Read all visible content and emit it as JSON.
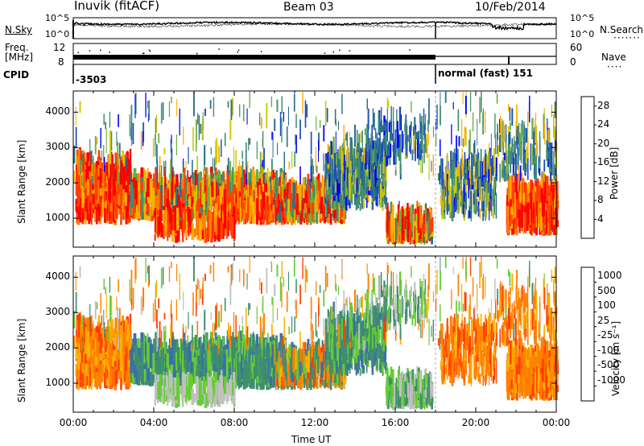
{
  "header": {
    "radar": "Inuvik (fitACF)",
    "beam": "Beam 03",
    "date": "10/Feb/2014"
  },
  "top_panels": {
    "nsky_label": "N.Sky",
    "nsky_ticks": [
      "10^5",
      "10^0"
    ],
    "nsearch_label": "N.Search",
    "nsearch_ticks": [
      "10^5",
      "10^0"
    ],
    "freq_label_1": "Freq.",
    "freq_label_2": "[MHz]",
    "freq_ticks": [
      "12",
      "8"
    ],
    "nave_label": "Nave",
    "nave_ticks": [
      "60",
      "0"
    ],
    "cpid_label": "CPID",
    "cpid_left": "-3503",
    "cpid_right": "normal (fast) 151"
  },
  "chart_data": [
    {
      "type": "heatmap",
      "title": "",
      "ylabel": "Slant Range [km]",
      "xlabel": "",
      "x_ticks": [
        "00:00",
        "04:00",
        "08:00",
        "12:00",
        "16:00",
        "20:00",
        "00:00"
      ],
      "y_ticks": [
        1000,
        2000,
        3000,
        4000
      ],
      "ylim": [
        180,
        4600
      ],
      "xlim_hours": [
        0,
        24
      ],
      "colorbar": {
        "label": "Power [dB]",
        "ticks": [
          4,
          8,
          12,
          16,
          20,
          24,
          28
        ],
        "range": [
          0,
          30
        ],
        "colors": [
          "#0000ff",
          "#1a4fb5",
          "#2b6f8f",
          "#3f8f6f",
          "#6fae3f",
          "#c8c800",
          "#ffb000",
          "#ff8000",
          "#ff4000",
          "#ff0000"
        ]
      }
    },
    {
      "type": "heatmap",
      "title": "",
      "ylabel": "Slant Range [km]",
      "xlabel": "Time UT",
      "x_ticks": [
        "00:00",
        "04:00",
        "08:00",
        "12:00",
        "16:00",
        "20:00",
        "00:00"
      ],
      "y_ticks": [
        1000,
        2000,
        3000,
        4000
      ],
      "ylim": [
        180,
        4600
      ],
      "xlim_hours": [
        0,
        24
      ],
      "colorbar": {
        "label": "Velocity [m s⁻¹]",
        "ticks": [
          "1000",
          "500",
          "100",
          "25",
          "-25",
          "-100",
          "-500",
          "-1000"
        ],
        "colors": [
          "#1f3fbf",
          "#3b6fa8",
          "#3f8f6f",
          "#66cc33",
          "#c0c0c0",
          "#ffb000",
          "#ff8000",
          "#ff4000",
          "#ff0000"
        ]
      }
    }
  ]
}
